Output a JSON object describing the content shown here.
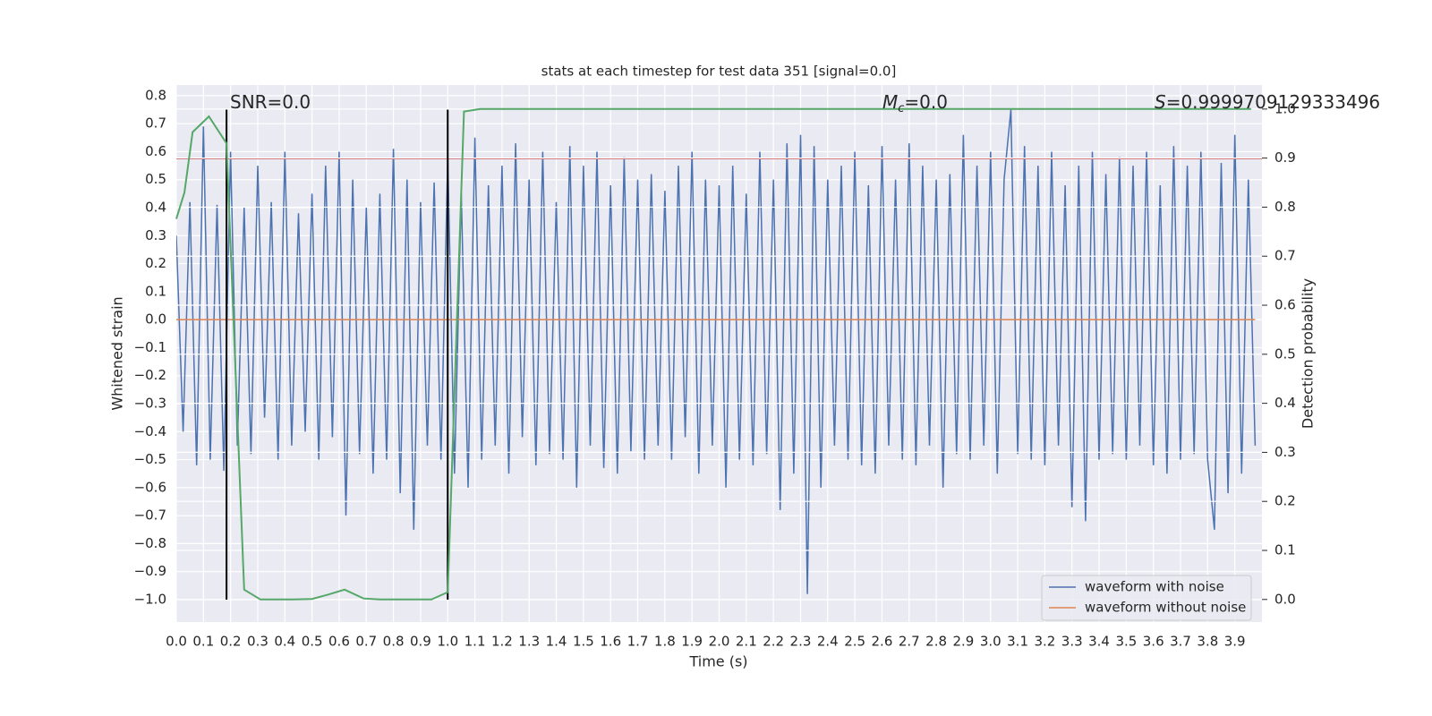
{
  "chart_data": {
    "type": "line",
    "title": "stats at each timestep for test data 351 [signal=0.0]",
    "x_label": "Time (s)",
    "y_label": "Whitened strain",
    "y2_label": "Detection probability",
    "xlim": [
      0,
      4.0
    ],
    "ylim": [
      -1.08,
      0.838
    ],
    "y2lim": [
      -0.046,
      1.049
    ],
    "xticks": [
      {
        "value": 0,
        "label": "0.0"
      },
      0.1,
      0.2,
      0.3,
      0.4,
      0.5,
      0.6,
      0.7,
      0.8,
      0.9,
      {
        "value": 1,
        "label": "1.0"
      },
      1.1,
      1.2,
      1.3,
      1.4,
      1.5,
      1.6,
      1.7,
      1.8,
      1.9,
      {
        "value": 2,
        "label": "2.0"
      },
      2.1,
      2.2,
      2.3,
      2.4,
      2.5,
      2.6,
      2.7,
      2.8,
      2.9,
      {
        "value": 3,
        "label": "3.0"
      },
      3.1,
      3.2,
      3.3,
      3.4,
      3.5,
      3.6,
      3.7,
      3.8,
      3.9
    ],
    "yticks": [
      {
        "value": -1.0,
        "label": "−1.0"
      },
      {
        "value": -0.9,
        "label": "−0.9"
      },
      {
        "value": -0.8,
        "label": "−0.8"
      },
      {
        "value": -0.7,
        "label": "−0.7"
      },
      {
        "value": -0.6,
        "label": "−0.6"
      },
      {
        "value": -0.5,
        "label": "−0.5"
      },
      {
        "value": -0.4,
        "label": "−0.4"
      },
      {
        "value": -0.3,
        "label": "−0.3"
      },
      {
        "value": -0.2,
        "label": "−0.2"
      },
      {
        "value": -0.1,
        "label": "−0.1"
      },
      {
        "value": 0,
        "label": "0.0"
      },
      0.1,
      0.2,
      0.3,
      0.4,
      0.5,
      0.6,
      0.7,
      0.8
    ],
    "y2ticks": [
      {
        "value": 0,
        "label": "0.0"
      },
      0.1,
      0.2,
      0.3,
      0.4,
      0.5,
      0.6,
      0.7,
      0.8,
      0.9,
      {
        "value": 1,
        "label": "1.0"
      }
    ],
    "grid": true,
    "legend": "lower right",
    "series": [
      {
        "name": "waveform with noise",
        "color": "#4c72b0",
        "x": [
          0,
          0.025,
          0.05,
          0.075,
          0.1,
          0.125,
          0.15,
          0.175,
          0.2,
          0.225,
          0.25,
          0.275,
          0.3,
          0.325,
          0.35,
          0.375,
          0.4,
          0.425,
          0.45,
          0.475,
          0.5,
          0.525,
          0.55,
          0.575,
          0.6,
          0.625,
          0.65,
          0.675,
          0.7,
          0.725,
          0.75,
          0.775,
          0.8,
          0.825,
          0.85,
          0.875,
          0.9,
          0.925,
          0.95,
          0.975,
          1,
          1.025,
          1.05,
          1.075,
          1.1,
          1.125,
          1.15,
          1.175,
          1.2,
          1.225,
          1.25,
          1.275,
          1.3,
          1.325,
          1.35,
          1.375,
          1.4,
          1.425,
          1.45,
          1.475,
          1.5,
          1.525,
          1.55,
          1.575,
          1.6,
          1.625,
          1.65,
          1.675,
          1.7,
          1.725,
          1.75,
          1.775,
          1.8,
          1.825,
          1.85,
          1.875,
          1.9,
          1.925,
          1.95,
          1.975,
          2,
          2.025,
          2.05,
          2.075,
          2.1,
          2.125,
          2.15,
          2.175,
          2.2,
          2.225,
          2.25,
          2.275,
          2.3,
          2.325,
          2.35,
          2.375,
          2.4,
          2.425,
          2.45,
          2.475,
          2.5,
          2.525,
          2.55,
          2.575,
          2.6,
          2.625,
          2.65,
          2.675,
          2.7,
          2.725,
          2.75,
          2.775,
          2.8,
          2.825,
          2.85,
          2.875,
          2.9,
          2.925,
          2.95,
          2.975,
          3,
          3.025,
          3.05,
          3.075,
          3.1,
          3.125,
          3.15,
          3.175,
          3.2,
          3.225,
          3.25,
          3.275,
          3.3,
          3.325,
          3.35,
          3.375,
          3.4,
          3.425,
          3.45,
          3.475,
          3.5,
          3.525,
          3.55,
          3.575,
          3.6,
          3.625,
          3.65,
          3.675,
          3.7,
          3.725,
          3.75,
          3.775,
          3.8,
          3.825,
          3.85,
          3.875,
          3.9,
          3.925,
          3.95,
          3.975
        ],
        "values": [
          0.3,
          -0.4,
          0.42,
          -0.52,
          0.69,
          -0.5,
          0.41,
          -0.54,
          0.6,
          -0.45,
          0.4,
          -0.48,
          0.55,
          -0.35,
          0.42,
          -0.5,
          0.6,
          -0.45,
          0.38,
          -0.4,
          0.45,
          -0.5,
          0.55,
          -0.42,
          0.6,
          -0.7,
          0.5,
          -0.48,
          0.4,
          -0.55,
          0.45,
          -0.5,
          0.61,
          -0.62,
          0.5,
          -0.75,
          0.42,
          -0.45,
          0.49,
          -0.5,
          0.58,
          -0.55,
          0.45,
          -0.6,
          0.65,
          -0.5,
          0.48,
          -0.45,
          0.55,
          -0.55,
          0.63,
          -0.42,
          0.5,
          -0.52,
          0.6,
          -0.48,
          0.42,
          -0.5,
          0.62,
          -0.6,
          0.55,
          -0.45,
          0.6,
          -0.53,
          0.48,
          -0.55,
          0.58,
          -0.47,
          0.5,
          -0.5,
          0.52,
          -0.45,
          0.46,
          -0.5,
          0.55,
          -0.42,
          0.6,
          -0.55,
          0.5,
          -0.45,
          0.48,
          -0.6,
          0.55,
          -0.5,
          0.45,
          -0.52,
          0.6,
          -0.48,
          0.5,
          -0.68,
          0.63,
          -0.55,
          0.66,
          -0.98,
          0.62,
          -0.6,
          0.5,
          -0.45,
          0.55,
          -0.5,
          0.6,
          -0.52,
          0.48,
          -0.55,
          0.62,
          -0.45,
          0.5,
          -0.5,
          0.63,
          -0.52,
          0.55,
          -0.45,
          0.5,
          -0.6,
          0.52,
          -0.48,
          0.66,
          -0.5,
          0.55,
          -0.45,
          0.6,
          -0.55,
          0.5,
          0.75,
          -0.48,
          0.62,
          -0.5,
          0.55,
          -0.52,
          0.6,
          -0.45,
          0.48,
          -0.67,
          0.55,
          -0.72,
          0.6,
          -0.5,
          0.52,
          -0.48,
          0.58,
          -0.5,
          0.55,
          -0.45,
          0.6,
          -0.52,
          0.48,
          -0.55,
          0.62,
          -0.5,
          0.55,
          -0.48,
          0.6,
          -0.5,
          -0.75,
          0.56,
          -0.62,
          0.66,
          -0.55,
          0.5,
          -0.45
        ]
      },
      {
        "name": "waveform without noise",
        "color": "#dd8452",
        "x": [
          0,
          3.975
        ],
        "values": [
          0,
          0
        ]
      }
    ],
    "probability": {
      "color": "#55a868",
      "axis": "y2",
      "x": [
        0,
        0.03,
        0.06,
        0.12,
        0.185,
        0.25,
        0.31,
        0.37,
        0.43,
        0.5,
        0.56,
        0.62,
        0.69,
        0.75,
        0.81,
        0.87,
        0.94,
        1.0,
        1.06,
        1.12,
        3.96
      ],
      "values": [
        0.776,
        0.83,
        0.953,
        0.985,
        0.93,
        0.02,
        0,
        0,
        0,
        0.001,
        0.01,
        0.02,
        0.002,
        0,
        0,
        0,
        0,
        0.015,
        0.995,
        1.0,
        1.0
      ]
    },
    "threshold": {
      "value": 0.575,
      "color": "#c44e52"
    },
    "markers": {
      "x": [
        0.185,
        1.0
      ],
      "from": -1.0,
      "to": 0.75,
      "color": "#000000"
    },
    "annotations": {
      "snr": "SNR=0.0",
      "mc_symbol": "M",
      "mc_sub": "c",
      "mc_text": "=0.0",
      "s_symbol": "S",
      "s_text": "=0.9999709129333496"
    }
  }
}
